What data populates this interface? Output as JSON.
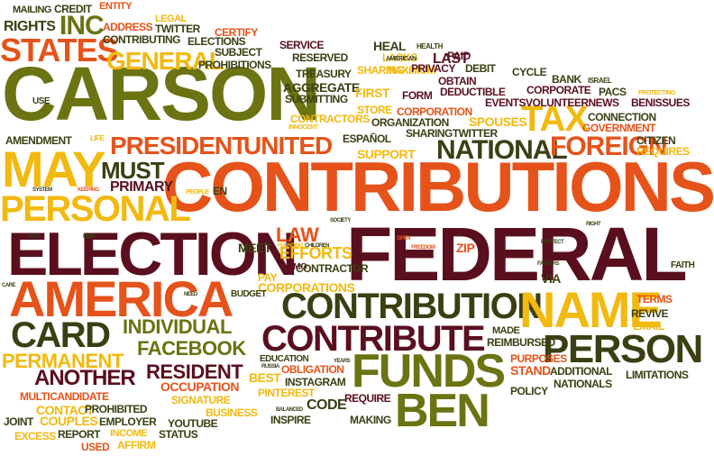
{
  "palette": {
    "maroon": "#5a0f1f",
    "olive": "#6b7312",
    "orange": "#e5531a",
    "yellow": "#f2b90f",
    "dark_olive": "#3b3f12"
  },
  "words": [
    {
      "id": "carson",
      "text": "CARSON",
      "color": "#6b7312"
    },
    {
      "id": "contributions",
      "text": "CONTRIBUTIONS",
      "color": "#e5531a"
    },
    {
      "id": "federal",
      "text": "FEDERAL",
      "color": "#5a0f1f"
    },
    {
      "id": "election",
      "text": "ELECTION",
      "color": "#5a0f1f"
    },
    {
      "id": "america",
      "text": "AMERICA",
      "color": "#e5531a"
    },
    {
      "id": "may",
      "text": "MAY",
      "color": "#f2b90f"
    },
    {
      "id": "personal",
      "text": "PERSONAL",
      "color": "#f2b90f"
    },
    {
      "id": "contribution",
      "text": "CONTRIBUTION",
      "color": "#3b3f12"
    },
    {
      "id": "contribute",
      "text": "CONTRIBUTE",
      "color": "#5a0f1f"
    },
    {
      "id": "name",
      "text": "NAME",
      "color": "#f2b90f"
    },
    {
      "id": "person",
      "text": "PERSON",
      "color": "#3b3f12"
    },
    {
      "id": "funds",
      "text": "FUNDS",
      "color": "#6b7312"
    },
    {
      "id": "ben",
      "text": "BEN",
      "color": "#6b7312"
    },
    {
      "id": "states",
      "text": "STATES",
      "color": "#e5531a"
    },
    {
      "id": "inc",
      "text": "INC",
      "color": "#6b7312"
    },
    {
      "id": "general",
      "text": "GENERAL",
      "color": "#f2b90f"
    },
    {
      "id": "tax",
      "text": "TAX",
      "color": "#f2b90f"
    },
    {
      "id": "president",
      "text": "PRESIDENT",
      "color": "#e5531a"
    },
    {
      "id": "united",
      "text": "UNITED",
      "color": "#e5531a"
    },
    {
      "id": "national",
      "text": "NATIONAL",
      "color": "#3b3f12"
    },
    {
      "id": "foreign",
      "text": "FOREIGN",
      "color": "#e5531a"
    },
    {
      "id": "must",
      "text": "MUST",
      "color": "#3b3f12"
    },
    {
      "id": "primary",
      "text": "PRIMARY",
      "color": "#5a0f1f"
    },
    {
      "id": "card",
      "text": "CARD",
      "color": "#3b3f12"
    },
    {
      "id": "individual",
      "text": "INDIVIDUAL",
      "color": "#6b7312"
    },
    {
      "id": "facebook",
      "text": "FACEBOOK",
      "color": "#6b7312"
    },
    {
      "id": "permanent",
      "text": "PERMANENT",
      "color": "#f2b90f"
    },
    {
      "id": "another",
      "text": "ANOTHER",
      "color": "#5a0f1f"
    },
    {
      "id": "resident",
      "text": "RESIDENT",
      "color": "#5a0f1f"
    },
    {
      "id": "law",
      "text": "LAW",
      "color": "#e5531a"
    },
    {
      "id": "efforts",
      "text": "EFFORTS",
      "color": "#f2b90f"
    },
    {
      "id": "meet",
      "text": "MEET",
      "color": "#3b3f12"
    },
    {
      "id": "gitmo",
      "text": "GITMO",
      "color": "#5a0f1f"
    },
    {
      "id": "contractor",
      "text": "CONTRACTOR",
      "color": "#3b3f12"
    },
    {
      "id": "pay",
      "text": "PAY",
      "color": "#f2b90f"
    },
    {
      "id": "corporations",
      "text": "CORPORATIONS",
      "color": "#f2b90f"
    },
    {
      "id": "budget",
      "text": "BUDGET",
      "color": "#3b3f12"
    },
    {
      "id": "zip",
      "text": "ZIP",
      "color": "#e5531a"
    },
    {
      "id": "via",
      "text": "VIA",
      "color": "#3b3f12"
    },
    {
      "id": "faith",
      "text": "FAITH",
      "color": "#3b3f12"
    },
    {
      "id": "terms",
      "text": "TERMS",
      "color": "#e5531a"
    },
    {
      "id": "revive",
      "text": "REVIVE",
      "color": "#3b3f12"
    },
    {
      "id": "email",
      "text": "EMAIL",
      "color": "#f2b90f"
    },
    {
      "id": "made",
      "text": "MADE",
      "color": "#3b3f12"
    },
    {
      "id": "reimbursed",
      "text": "REIMBURSED",
      "color": "#3b3f12"
    },
    {
      "id": "purposes",
      "text": "PURPOSES",
      "color": "#e5531a"
    },
    {
      "id": "stand",
      "text": "STAND",
      "color": "#e5531a"
    },
    {
      "id": "additional",
      "text": "ADDITIONAL",
      "color": "#3b3f12"
    },
    {
      "id": "limitations",
      "text": "LIMITATIONS",
      "color": "#3b3f12"
    },
    {
      "id": "nationals",
      "text": "NATIONALS",
      "color": "#3b3f12"
    },
    {
      "id": "policy",
      "text": "POLICY",
      "color": "#3b3f12"
    },
    {
      "id": "mailing",
      "text": "MAILING",
      "color": "#3b3f12"
    },
    {
      "id": "credit",
      "text": "CREDIT",
      "color": "#3b3f12"
    },
    {
      "id": "entity",
      "text": "ENTITY",
      "color": "#e5531a"
    },
    {
      "id": "rights",
      "text": "RIGHTS",
      "color": "#3b3f12"
    },
    {
      "id": "address",
      "text": "ADDRESS",
      "color": "#e5531a"
    },
    {
      "id": "legal",
      "text": "LEGAL",
      "color": "#f2b90f"
    },
    {
      "id": "twitter_top",
      "text": "TWITTER",
      "color": "#3b3f12"
    },
    {
      "id": "certify",
      "text": "CERTIFY",
      "color": "#e5531a"
    },
    {
      "id": "contributing",
      "text": "CONTRIBUTING",
      "color": "#3b3f12"
    },
    {
      "id": "elections",
      "text": "ELECTIONS",
      "color": "#3b3f12"
    },
    {
      "id": "subject",
      "text": "SUBJECT",
      "color": "#3b3f12"
    },
    {
      "id": "prohibitions",
      "text": "PROHIBITIONS",
      "color": "#3b3f12"
    },
    {
      "id": "service",
      "text": "SERVICE",
      "color": "#5a0f1f"
    },
    {
      "id": "reserved",
      "text": "RESERVED",
      "color": "#3b3f12"
    },
    {
      "id": "heal",
      "text": "HEAL",
      "color": "#3b3f12"
    },
    {
      "id": "health",
      "text": "HEALTH",
      "color": "#3b3f12"
    },
    {
      "id": "lacks",
      "text": "LACKS",
      "color": "#f2b90f"
    },
    {
      "id": "paid",
      "text": "PAID",
      "color": "#5a0f1f"
    },
    {
      "id": "last",
      "text": "LAST",
      "color": "#5a0f1f"
    },
    {
      "id": "american",
      "text": "AMERICAN",
      "color": "#3b3f12"
    },
    {
      "id": "maximum",
      "text": "MAXIMUM",
      "color": "#f2b90f"
    },
    {
      "id": "debit",
      "text": "DEBIT",
      "color": "#3b3f12"
    },
    {
      "id": "treasury",
      "text": "TREASURY",
      "color": "#3b3f12"
    },
    {
      "id": "sharing",
      "text": "SHARING",
      "color": "#f2b90f"
    },
    {
      "id": "privacy",
      "text": "PRIVACY",
      "color": "#5a0f1f"
    },
    {
      "id": "cycle",
      "text": "CYCLE",
      "color": "#3b3f12"
    },
    {
      "id": "aggregate",
      "text": "AGGREGATE",
      "color": "#3b3f12"
    },
    {
      "id": "obtain",
      "text": "OBTAIN",
      "color": "#5a0f1f"
    },
    {
      "id": "bank",
      "text": "BANK",
      "color": "#3b3f12"
    },
    {
      "id": "israel",
      "text": "ISRAEL",
      "color": "#3b3f12"
    },
    {
      "id": "submitting",
      "text": "SUBMITTING",
      "color": "#3b3f12"
    },
    {
      "id": "first",
      "text": "FIRST",
      "color": "#f2b90f"
    },
    {
      "id": "form",
      "text": "FORM",
      "color": "#5a0f1f"
    },
    {
      "id": "deductible",
      "text": "DEDUCTIBLE",
      "color": "#5a0f1f"
    },
    {
      "id": "corporate",
      "text": "CORPORATE",
      "color": "#5a0f1f"
    },
    {
      "id": "pacs",
      "text": "PACS",
      "color": "#3b3f12"
    },
    {
      "id": "protecting",
      "text": "PROTECTING",
      "color": "#f2b90f"
    },
    {
      "id": "use",
      "text": "USE",
      "color": "#3b3f12"
    },
    {
      "id": "store",
      "text": "STORE",
      "color": "#f2b90f"
    },
    {
      "id": "corporation",
      "text": "CORPORATION",
      "color": "#e5531a"
    },
    {
      "id": "events",
      "text": "EVENTSVOLUNTEERNEWS",
      "color": "#5a0f1f"
    },
    {
      "id": "benissues",
      "text": "BENISSUES",
      "color": "#5a0f1f"
    },
    {
      "id": "contractors",
      "text": "CONTRACTORS",
      "color": "#f2b90f"
    },
    {
      "id": "organization",
      "text": "ORGANIZATION",
      "color": "#3b3f12"
    },
    {
      "id": "spouses",
      "text": "SPOUSES",
      "color": "#f2b90f"
    },
    {
      "id": "connection",
      "text": "CONNECTION",
      "color": "#3b3f12"
    },
    {
      "id": "government",
      "text": "GOVERNMENT",
      "color": "#e5531a"
    },
    {
      "id": "innocent",
      "text": "INNOCENT",
      "color": "#f2b90f"
    },
    {
      "id": "sharingtwitter",
      "text": "SHARINGTWITTER",
      "color": "#3b3f12"
    },
    {
      "id": "amendment",
      "text": "AMENDMENT",
      "color": "#3b3f12"
    },
    {
      "id": "life",
      "text": "LIFE",
      "color": "#f2b90f"
    },
    {
      "id": "espanol",
      "text": "ESPAÑOL",
      "color": "#3b3f12"
    },
    {
      "id": "citizen",
      "text": "CITIZEN",
      "color": "#3b3f12"
    },
    {
      "id": "requires",
      "text": "REQUIRES",
      "color": "#f2b90f"
    },
    {
      "id": "support",
      "text": "SUPPORT",
      "color": "#f2b90f"
    },
    {
      "id": "system",
      "text": "SYSTEM",
      "color": "#3b3f12"
    },
    {
      "id": "keeping",
      "text": "KEEPING",
      "color": "#e5531a"
    },
    {
      "id": "people",
      "text": "PEOPLE",
      "color": "#f2b90f"
    },
    {
      "id": "en",
      "text": "EN",
      "color": "#3b3f12"
    },
    {
      "id": "society",
      "text": "SOCIETY",
      "color": "#3b3f12"
    },
    {
      "id": "right",
      "text": "RIGHT",
      "color": "#3b3f12"
    },
    {
      "id": "keep",
      "text": "KEEP",
      "color": "#3b3f12"
    },
    {
      "id": "debt",
      "text": "DEBT",
      "color": "#3b3f12"
    },
    {
      "id": "founding",
      "text": "FOUNDING",
      "color": "#f2b90f"
    },
    {
      "id": "children",
      "text": "CHILDREN",
      "color": "#3b3f12"
    },
    {
      "id": "open",
      "text": "OPEN",
      "color": "#e5531a"
    },
    {
      "id": "freedom",
      "text": "FREEDOM",
      "color": "#e5531a"
    },
    {
      "id": "protect",
      "text": "PROTECT",
      "color": "#3b3f12"
    },
    {
      "id": "fathers",
      "text": "FATHERS",
      "color": "#3b3f12"
    },
    {
      "id": "care",
      "text": "CARE",
      "color": "#3b3f12"
    },
    {
      "id": "need",
      "text": "NEED",
      "color": "#3b3f12"
    },
    {
      "id": "education",
      "text": "EDUCATION",
      "color": "#3b3f12"
    },
    {
      "id": "obligation",
      "text": "OBLIGATION",
      "color": "#e5531a"
    },
    {
      "id": "best",
      "text": "BEST",
      "color": "#f2b90f"
    },
    {
      "id": "instagram",
      "text": "INSTAGRAM",
      "color": "#3b3f12"
    },
    {
      "id": "russia",
      "text": "RUSSIA",
      "color": "#3b3f12"
    },
    {
      "id": "years",
      "text": "YEARS",
      "color": "#3b3f12"
    },
    {
      "id": "occupation",
      "text": "OCCUPATION",
      "color": "#e5531a"
    },
    {
      "id": "pinterest",
      "text": "PINTEREST",
      "color": "#f2b90f"
    },
    {
      "id": "code",
      "text": "CODE",
      "color": "#3b3f12"
    },
    {
      "id": "require",
      "text": "REQUIRE",
      "color": "#5a0f1f"
    },
    {
      "id": "signature",
      "text": "SIGNATURE",
      "color": "#f2b90f"
    },
    {
      "id": "multicandidate",
      "text": "MULTICANDIDATE",
      "color": "#e5531a"
    },
    {
      "id": "contact",
      "text": "CONTACT",
      "color": "#f2b90f"
    },
    {
      "id": "prohibited",
      "text": "PROHIBITED",
      "color": "#3b3f12"
    },
    {
      "id": "business",
      "text": "BUSINESS",
      "color": "#f2b90f"
    },
    {
      "id": "balanced",
      "text": "BALANCED",
      "color": "#3b3f12"
    },
    {
      "id": "inspire",
      "text": "INSPIRE",
      "color": "#3b3f12"
    },
    {
      "id": "making",
      "text": "MAKING",
      "color": "#3b3f12"
    },
    {
      "id": "joint",
      "text": "JOINT",
      "color": "#3b3f12"
    },
    {
      "id": "couples",
      "text": "COUPLES",
      "color": "#f2b90f"
    },
    {
      "id": "employer",
      "text": "EMPLOYER",
      "color": "#3b3f12"
    },
    {
      "id": "youtube",
      "text": "YOUTUBE",
      "color": "#3b3f12"
    },
    {
      "id": "excess",
      "text": "EXCESS",
      "color": "#f2b90f"
    },
    {
      "id": "report",
      "text": "REPORT",
      "color": "#3b3f12"
    },
    {
      "id": "income",
      "text": "INCOME",
      "color": "#f2b90f"
    },
    {
      "id": "status",
      "text": "STATUS",
      "color": "#3b3f12"
    },
    {
      "id": "used",
      "text": "USED",
      "color": "#e5531a"
    },
    {
      "id": "affirm",
      "text": "AFFIRM",
      "color": "#f2b90f"
    }
  ]
}
